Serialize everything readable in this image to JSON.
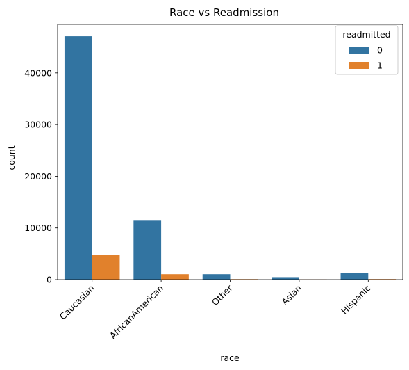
{
  "chart_data": {
    "type": "bar",
    "title": "Race vs Readmission",
    "xlabel": "race",
    "ylabel": "count",
    "categories": [
      "Caucasian",
      "AfricanAmerican",
      "Other",
      "Asian",
      "Hispanic"
    ],
    "series": [
      {
        "name": "0",
        "color": "#3274a1",
        "values": [
          47100,
          11400,
          1050,
          480,
          1300
        ]
      },
      {
        "name": "1",
        "color": "#e1812c",
        "values": [
          4750,
          1050,
          90,
          30,
          100
        ]
      }
    ],
    "ylim": [
      0,
      49400
    ],
    "yticks": [
      0,
      10000,
      20000,
      30000,
      40000
    ],
    "ytick_labels": [
      "0",
      "10000",
      "20000",
      "30000",
      "40000"
    ],
    "legend": {
      "title": "readmitted",
      "position": "top-right"
    },
    "grid": false
  }
}
